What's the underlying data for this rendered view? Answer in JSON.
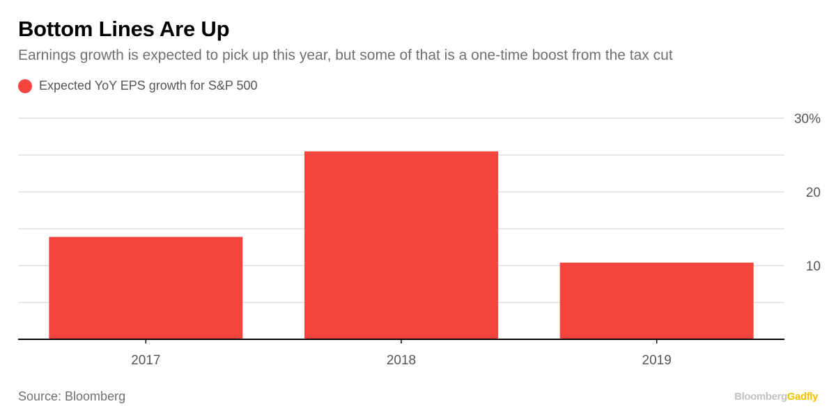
{
  "header": {
    "title": "Bottom Lines Are Up",
    "subtitle": "Earnings growth is expected to pick up this year, but some of that is a one-time boost from the tax cut"
  },
  "colors": {
    "bar": "#f4443e",
    "grid": "#e6e6e6",
    "axis": "#000000",
    "tick_text": "#555555"
  },
  "footer": {
    "source": "Source: Bloomberg",
    "brand_part1": "Bloomberg",
    "brand_part2": "Gadfly"
  },
  "chart_data": {
    "type": "bar",
    "title": "Bottom Lines Are Up",
    "categories": [
      "2017",
      "2018",
      "2019"
    ],
    "series": [
      {
        "name": "Expected YoY EPS growth for S&P 500",
        "values": [
          13.9,
          25.5,
          10.4
        ]
      }
    ],
    "ylim": [
      0,
      30
    ],
    "yticks": [
      {
        "value": 10,
        "label": "10"
      },
      {
        "value": 20,
        "label": "20"
      },
      {
        "value": 30,
        "label": "30%"
      }
    ],
    "grid": true,
    "y_axis_side": "right",
    "legend_position": "top-left"
  }
}
